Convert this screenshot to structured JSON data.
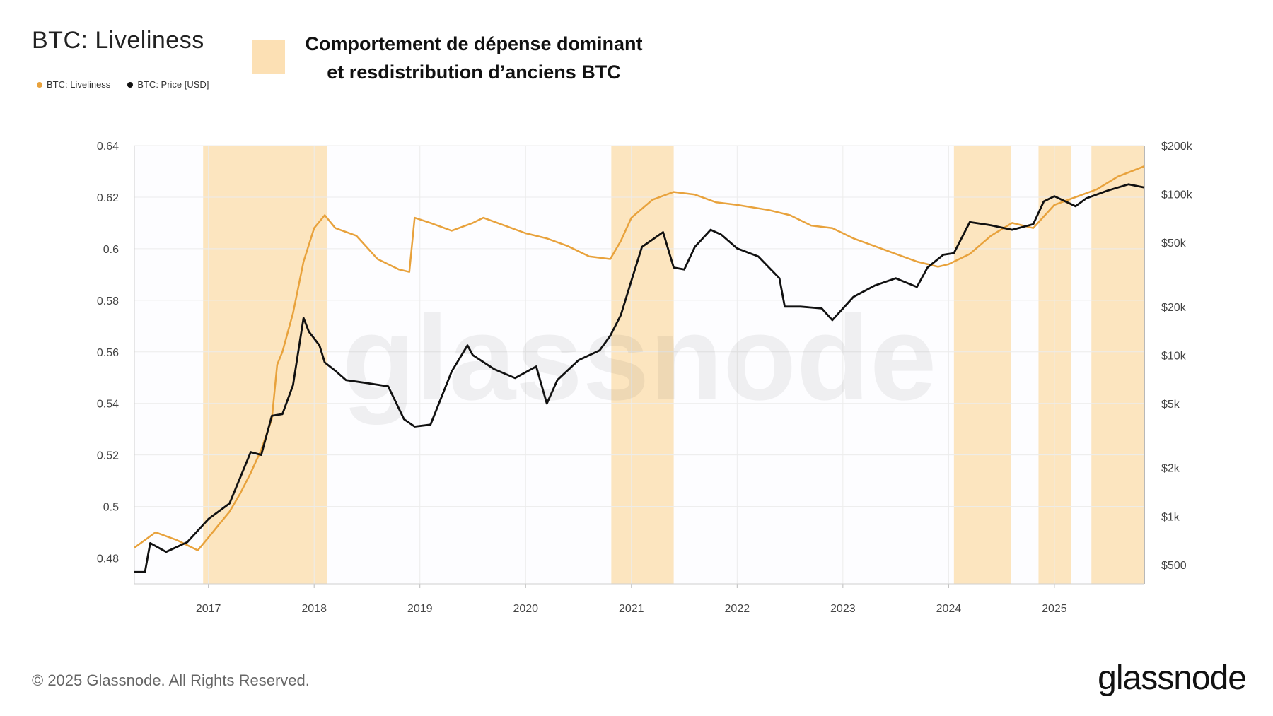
{
  "header": {
    "title": "BTC: Liveliness",
    "annotation_line1": "Comportement de dépense dominant",
    "annotation_line2": "et resdistribution d’anciens BTC"
  },
  "footer": {
    "copyright": "© 2025 Glassnode. All Rights Reserved.",
    "brand": "glassnode"
  },
  "colors": {
    "liveliness": "#e8a23c",
    "price": "#111111",
    "band": "#fce0b4",
    "grid": "#ececec"
  },
  "chart_data": {
    "type": "line",
    "watermark": "glassnode",
    "legend_placement": "top-left",
    "grid": true,
    "x_ticks": [
      "2017",
      "2018",
      "2019",
      "2020",
      "2021",
      "2022",
      "2023",
      "2024",
      "2025"
    ],
    "x_range": [
      2016.3,
      2025.85
    ],
    "y_left": {
      "ticks": [
        "0.64",
        "0.62",
        "0.6",
        "0.58",
        "0.56",
        "0.54",
        "0.52",
        "0.5",
        "0.48"
      ],
      "range": [
        0.47,
        0.64
      ]
    },
    "y_right": {
      "scale": "log",
      "ticks": [
        "$200k",
        "$100k",
        "$50k",
        "$20k",
        "$10k",
        "$5k",
        "$2k",
        "$1k",
        "$500"
      ],
      "tick_values": [
        200000,
        100000,
        50000,
        20000,
        10000,
        5000,
        2000,
        1000,
        500
      ],
      "range": [
        380,
        200000
      ]
    },
    "shaded_periods": [
      [
        2016.95,
        2018.12
      ],
      [
        2020.81,
        2021.4
      ],
      [
        2024.05,
        2024.59
      ],
      [
        2024.85,
        2025.16
      ],
      [
        2025.35,
        2025.85
      ]
    ],
    "series": [
      {
        "name": "BTC: Liveliness",
        "axis": "left",
        "x": [
          2016.3,
          2016.4,
          2016.5,
          2016.7,
          2016.9,
          2017.0,
          2017.1,
          2017.2,
          2017.3,
          2017.4,
          2017.5,
          2017.6,
          2017.65,
          2017.7,
          2017.8,
          2017.9,
          2018.0,
          2018.1,
          2018.2,
          2018.4,
          2018.6,
          2018.8,
          2018.9,
          2018.95,
          2019.1,
          2019.3,
          2019.5,
          2019.6,
          2019.8,
          2020.0,
          2020.2,
          2020.4,
          2020.6,
          2020.8,
          2020.9,
          2021.0,
          2021.2,
          2021.4,
          2021.6,
          2021.8,
          2022.0,
          2022.3,
          2022.5,
          2022.7,
          2022.9,
          2023.1,
          2023.3,
          2023.5,
          2023.7,
          2023.9,
          2024.0,
          2024.2,
          2024.4,
          2024.6,
          2024.8,
          2025.0,
          2025.2,
          2025.4,
          2025.6,
          2025.85
        ],
        "values": [
          0.484,
          0.487,
          0.49,
          0.487,
          0.483,
          0.488,
          0.493,
          0.498,
          0.505,
          0.513,
          0.522,
          0.534,
          0.555,
          0.56,
          0.575,
          0.595,
          0.608,
          0.613,
          0.608,
          0.605,
          0.596,
          0.592,
          0.591,
          0.612,
          0.61,
          0.607,
          0.61,
          0.612,
          0.609,
          0.606,
          0.604,
          0.601,
          0.597,
          0.596,
          0.603,
          0.612,
          0.619,
          0.622,
          0.621,
          0.618,
          0.617,
          0.615,
          0.613,
          0.609,
          0.608,
          0.604,
          0.601,
          0.598,
          0.595,
          0.593,
          0.594,
          0.598,
          0.605,
          0.61,
          0.608,
          0.617,
          0.62,
          0.623,
          0.628,
          0.632
        ]
      },
      {
        "name": "BTC: Price [USD]",
        "axis": "right",
        "x": [
          2016.3,
          2016.4,
          2016.45,
          2016.6,
          2016.8,
          2017.0,
          2017.2,
          2017.4,
          2017.5,
          2017.6,
          2017.7,
          2017.8,
          2017.9,
          2017.95,
          2018.05,
          2018.1,
          2018.2,
          2018.3,
          2018.5,
          2018.7,
          2018.85,
          2018.95,
          2019.1,
          2019.3,
          2019.45,
          2019.5,
          2019.7,
          2019.9,
          2020.1,
          2020.2,
          2020.3,
          2020.5,
          2020.7,
          2020.8,
          2020.9,
          2021.0,
          2021.1,
          2021.3,
          2021.4,
          2021.5,
          2021.6,
          2021.75,
          2021.85,
          2022.0,
          2022.2,
          2022.4,
          2022.45,
          2022.6,
          2022.8,
          2022.9,
          2023.1,
          2023.3,
          2023.5,
          2023.7,
          2023.8,
          2023.95,
          2024.05,
          2024.2,
          2024.4,
          2024.6,
          2024.8,
          2024.9,
          2025.0,
          2025.2,
          2025.3,
          2025.5,
          2025.7,
          2025.85
        ],
        "values": [
          450,
          450,
          680,
          600,
          690,
          960,
          1200,
          2500,
          2400,
          4200,
          4300,
          6500,
          17000,
          14000,
          11500,
          9000,
          8000,
          7000,
          6700,
          6400,
          4000,
          3600,
          3700,
          7900,
          11500,
          10000,
          8200,
          7200,
          8500,
          5000,
          7000,
          9300,
          10700,
          13200,
          17700,
          29000,
          47000,
          58000,
          35000,
          34000,
          47000,
          60000,
          56000,
          46000,
          41000,
          30000,
          20000,
          20000,
          19500,
          16500,
          23000,
          27000,
          30000,
          26500,
          35000,
          42000,
          43000,
          67000,
          64000,
          60000,
          65000,
          90000,
          97000,
          84000,
          94000,
          105000,
          115000,
          110000
        ]
      }
    ]
  }
}
